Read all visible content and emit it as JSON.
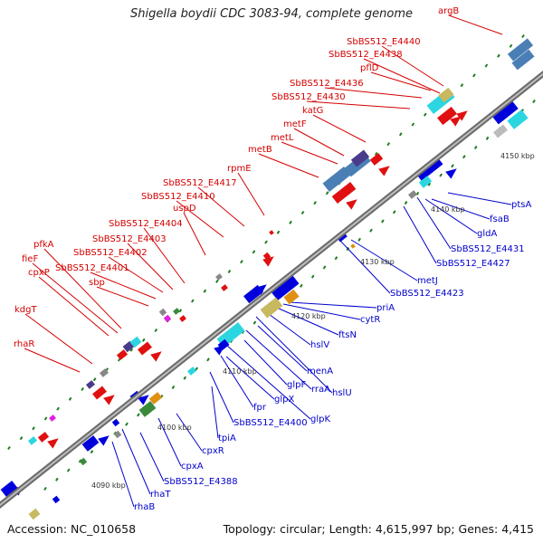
{
  "title": "Shigella boydii CDC 3083-94, complete genome",
  "footer": {
    "accession": "Accession: NC_010658",
    "summary": "Topology: circular; Length: 4,615,997 bp; Genes: 4,415"
  },
  "colors": {
    "forward_label": "#d40000",
    "reverse_label": "#0000cc",
    "backbone": "#8c8c8c",
    "tick": "#1e7d1e"
  },
  "kbp_labels": [
    "4090 kbp",
    "4100 kbp",
    "4110 kbp",
    "4120 kbp",
    "4130 kbp",
    "4140 kbp",
    "4150 kbp"
  ],
  "forward_labels": [
    "argB",
    "SbBS512_E4440",
    "SbBS512_E4438",
    "pflD",
    "SbBS512_E4436",
    "SbBS512_E4430",
    "katG",
    "metF",
    "metL",
    "metB",
    "rpmE",
    "SbBS512_E4417",
    "SbBS512_E4410",
    "uspD",
    "SbBS512_E4404",
    "SbBS512_E4403",
    "SbBS512_E4402",
    "SbBS512_E4401",
    "sbp",
    "pfkA",
    "fieF",
    "cpxP",
    "kdgT",
    "rhaR"
  ],
  "reverse_labels": [
    "ptsA",
    "fsaB",
    "gldA",
    "SbBS512_E4431",
    "SbBS512_E4427",
    "metJ",
    "SbBS512_E4423",
    "priA",
    "cytR",
    "ftsN",
    "hslV",
    "menA",
    "rraA",
    "glpF",
    "hslU",
    "glpX",
    "glpK",
    "fpr",
    "SbBS512_E4400",
    "tpiA",
    "cpxR",
    "cpxA",
    "SbBS512_E4388",
    "rhaT",
    "rhaB"
  ]
}
